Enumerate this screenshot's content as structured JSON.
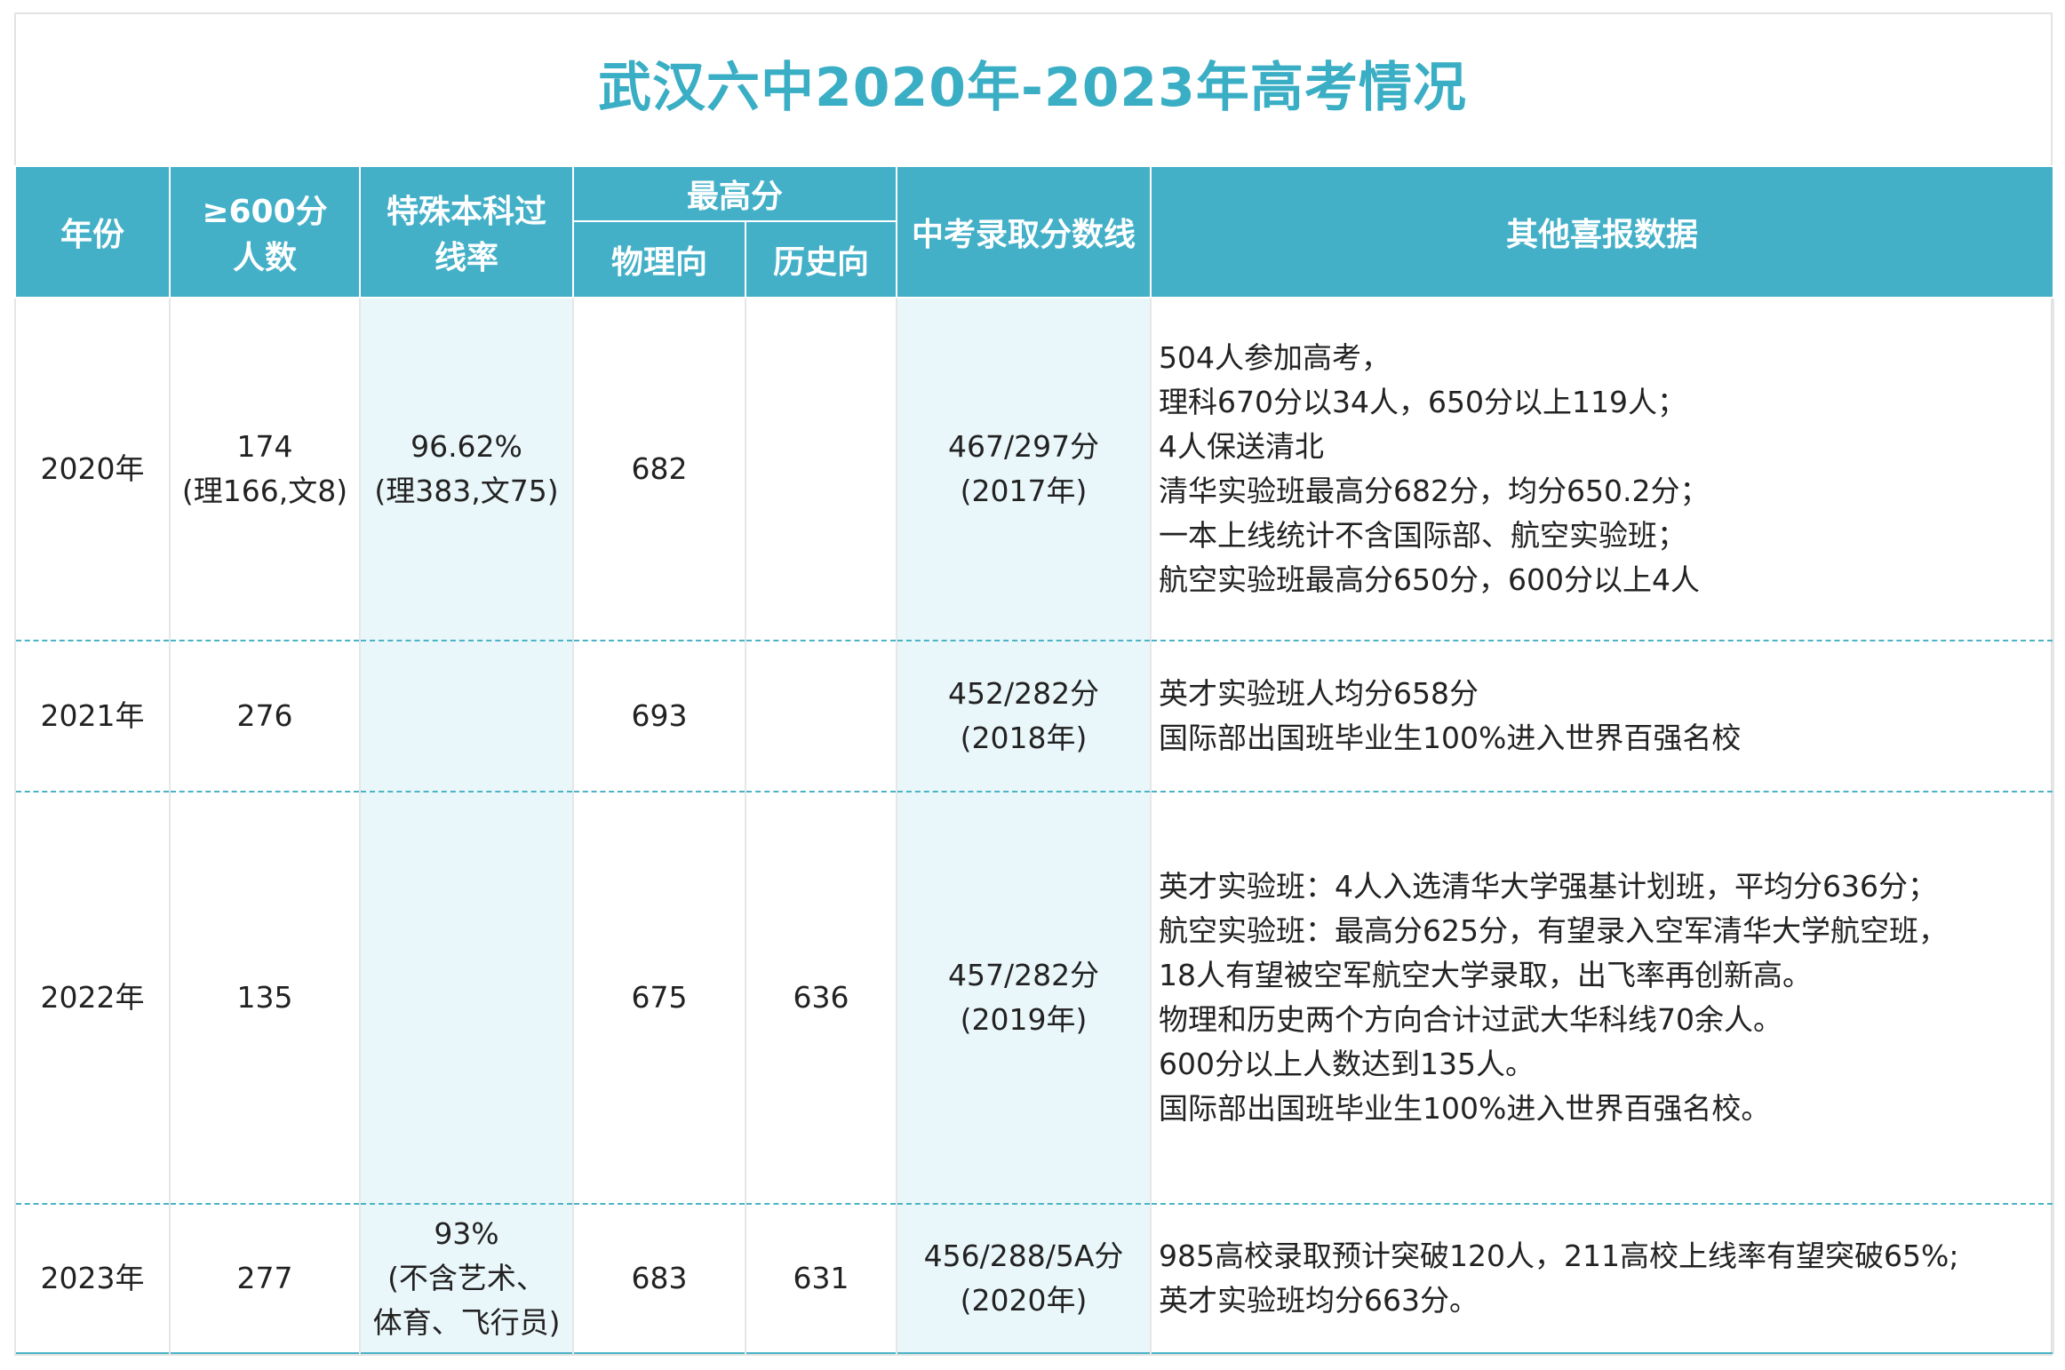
{
  "title": "武汉六中2020年-2023年高考情况",
  "colors": {
    "header_bg": "#43b0c8",
    "title_text": "#3aaec4",
    "shade_bg": "#eaf7fa"
  },
  "table": {
    "headers": {
      "year": "年份",
      "over600_1": "≥600分",
      "over600_2": "人数",
      "special_1": "特殊本科过",
      "special_2": "线率",
      "max_score": "最高分",
      "physics": "物理向",
      "history": "历史向",
      "zhongkao": "中考录取分数线",
      "other": "其他喜报数据"
    },
    "rows": [
      {
        "year": "2020年",
        "over600": [
          "174",
          "(理166,文8)"
        ],
        "special": [
          "96.62%",
          "(理383,文75)"
        ],
        "physics": "682",
        "history": "",
        "zhongkao": [
          "467/297分",
          "(2017年)"
        ],
        "other": [
          "504人参加高考，",
          "理科670分以34人，650分以上119人；",
          "4人保送清北",
          "清华实验班最高分682分，均分650.2分；",
          "一本上线统计不含国际部、航空实验班；",
          "航空实验班最高分650分，600分以上4人"
        ]
      },
      {
        "year": "2021年",
        "over600": [
          "276"
        ],
        "special": [],
        "physics": "693",
        "history": "",
        "zhongkao": [
          "452/282分",
          "(2018年)"
        ],
        "other": [
          "英才实验班人均分658分",
          "国际部出国班毕业生100%进入世界百强名校"
        ]
      },
      {
        "year": "2022年",
        "over600": [
          "135"
        ],
        "special": [],
        "physics": "675",
        "history": "636",
        "zhongkao": [
          "457/282分",
          "(2019年)"
        ],
        "other": [
          "英才实验班：4人入选清华大学强基计划班，平均分636分；",
          "航空实验班：最高分625分，有望录入空军清华大学航空班，",
          "18人有望被空军航空大学录取，出飞率再创新高。",
          "物理和历史两个方向合计过武大华科线70余人。",
          "600分以上人数达到135人。",
          "国际部出国班毕业生100%进入世界百强名校。"
        ]
      },
      {
        "year": "2023年",
        "over600": [
          "277"
        ],
        "special": [
          "93%",
          "(不含艺术、",
          "体育、飞行员)"
        ],
        "physics": "683",
        "history": "631",
        "zhongkao": [
          "456/288/5A分",
          "(2020年)"
        ],
        "other": [
          "985高校录取预计突破120人，211高校上线率有望突破65%;",
          "英才实验班均分663分。"
        ]
      }
    ]
  }
}
